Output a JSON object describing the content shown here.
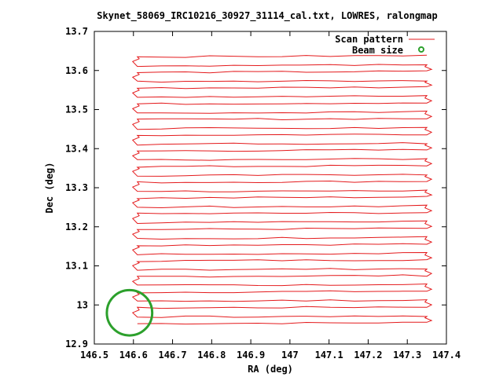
{
  "chart_data": {
    "type": "line",
    "title": "Skynet_58069_IRC10216_30927_31114_cal.txt, LOWRES, ralongmap",
    "xlabel": "RA (deg)",
    "ylabel": "Dec (deg)",
    "xlim": [
      146.5,
      147.4
    ],
    "ylim": [
      12.9,
      13.7
    ],
    "xticks": [
      "146.5",
      "146.6",
      "146.7",
      "146.8",
      "146.9",
      "147",
      "147.1",
      "147.2",
      "147.3",
      "147.4"
    ],
    "yticks": [
      "12.9",
      "13",
      "13.1",
      "13.2",
      "13.3",
      "13.4",
      "13.5",
      "13.6",
      "13.7"
    ],
    "legend_position": "top-right",
    "grid": false,
    "series": [
      {
        "name": "Scan pattern",
        "kind": "raster-scan",
        "color": "#e41a1c",
        "scan_x_start": 146.61,
        "scan_x_end": 147.35,
        "scan_y_start": 12.952,
        "scan_y_end": 13.635,
        "scan_rows": 35
      },
      {
        "name": "Beam size",
        "kind": "circle",
        "color": "#2ca02c",
        "center": [
          146.59,
          12.98
        ],
        "radius": 0.058
      }
    ]
  }
}
